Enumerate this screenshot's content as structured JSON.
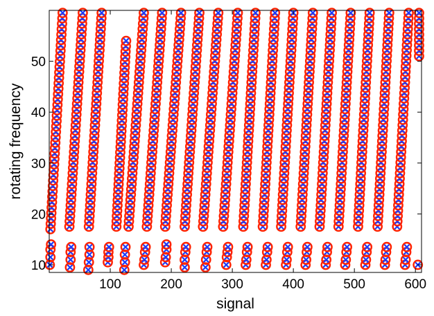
{
  "chart_data": {
    "type": "scatter",
    "title": "",
    "xlabel": "signal",
    "ylabel": "rotating frequency",
    "xlim": [
      0,
      610
    ],
    "ylim": [
      8.5,
      60
    ],
    "xticks": [
      100,
      200,
      300,
      400,
      500,
      600
    ],
    "yticks": [
      10,
      20,
      30,
      40,
      50
    ],
    "grid": false,
    "legend": "none",
    "series": [
      {
        "marker": "o",
        "color": "#ff2200",
        "role": "circles"
      },
      {
        "marker": "x",
        "color": "#1a3cff",
        "role": "crosses"
      }
    ],
    "columns": [
      {
        "top_x": 22,
        "top_y": 59.5,
        "bottom_x": 2,
        "bottom_y": 17,
        "low": [
          [
            1,
            10
          ],
          [
            2,
            11.5
          ],
          [
            2,
            13
          ],
          [
            3,
            14
          ]
        ]
      },
      {
        "top_x": 55,
        "top_y": 59.5,
        "bottom_x": 33,
        "bottom_y": 17.5,
        "low": [
          [
            34,
            9.5
          ],
          [
            35,
            11
          ],
          [
            35,
            12.5
          ],
          [
            36,
            13.5
          ]
        ]
      },
      {
        "top_x": 86,
        "top_y": 59.5,
        "bottom_x": 65,
        "bottom_y": 17.5,
        "low": [
          [
            64,
            9
          ],
          [
            65,
            10.5
          ],
          [
            66,
            12
          ],
          [
            66,
            13.5
          ]
        ]
      },
      {
        "top_x": 126,
        "top_y": 54,
        "bottom_x": 110,
        "bottom_y": 17.5,
        "low": [
          [
            96,
            10.5
          ],
          [
            97,
            11.5
          ],
          [
            97,
            12.5
          ],
          [
            98,
            13.5
          ]
        ]
      },
      {
        "top_x": 155,
        "top_y": 59.5,
        "bottom_x": 130,
        "bottom_y": 17.5,
        "low": [
          [
            123,
            9
          ],
          [
            124,
            10.5
          ],
          [
            124,
            12
          ],
          [
            125,
            13.5
          ]
        ]
      },
      {
        "top_x": 185,
        "top_y": 59.5,
        "bottom_x": 160,
        "bottom_y": 17.5,
        "low": [
          [
            155,
            10
          ],
          [
            156,
            11
          ],
          [
            157,
            12.5
          ],
          [
            158,
            13.5
          ]
        ]
      },
      {
        "top_x": 216,
        "top_y": 59.5,
        "bottom_x": 190,
        "bottom_y": 17.5,
        "low": [
          [
            190,
            10.5
          ],
          [
            191,
            11.5
          ],
          [
            192,
            13
          ],
          [
            192,
            14
          ]
        ]
      },
      {
        "top_x": 246,
        "top_y": 59.5,
        "bottom_x": 222,
        "bottom_y": 17.5,
        "low": [
          [
            222,
            9.5
          ],
          [
            222,
            11
          ],
          [
            223,
            12.5
          ],
          [
            224,
            13.5
          ]
        ]
      },
      {
        "top_x": 277,
        "top_y": 59.5,
        "bottom_x": 252,
        "bottom_y": 17.5,
        "low": [
          [
            256,
            9.5
          ],
          [
            257,
            11
          ],
          [
            258,
            12.5
          ],
          [
            259,
            13.5
          ]
        ]
      },
      {
        "top_x": 309,
        "top_y": 59.5,
        "bottom_x": 285,
        "bottom_y": 17.5,
        "low": [
          [
            290,
            10
          ],
          [
            291,
            11.5
          ],
          [
            292,
            12.5
          ],
          [
            293,
            13.5
          ]
        ]
      },
      {
        "top_x": 338,
        "top_y": 59.5,
        "bottom_x": 318,
        "bottom_y": 17.5,
        "low": [
          [
            322,
            10
          ],
          [
            323,
            11
          ],
          [
            324,
            12.5
          ],
          [
            325,
            13.5
          ]
        ]
      },
      {
        "top_x": 370,
        "top_y": 59.5,
        "bottom_x": 350,
        "bottom_y": 17.5,
        "low": [
          [
            355,
            10
          ],
          [
            356,
            11
          ],
          [
            357,
            12.5
          ],
          [
            358,
            13.5
          ]
        ]
      },
      {
        "top_x": 400,
        "top_y": 59.5,
        "bottom_x": 380,
        "bottom_y": 17.5,
        "low": [
          [
            388,
            10
          ],
          [
            389,
            11
          ],
          [
            390,
            12.5
          ],
          [
            391,
            13.5
          ]
        ]
      },
      {
        "top_x": 432,
        "top_y": 59.5,
        "bottom_x": 412,
        "bottom_y": 17.5,
        "low": [
          [
            420,
            10
          ],
          [
            421,
            11
          ],
          [
            422,
            12.5
          ],
          [
            423,
            13.5
          ]
        ]
      },
      {
        "top_x": 463,
        "top_y": 59.5,
        "bottom_x": 443,
        "bottom_y": 17.5,
        "low": [
          [
            453,
            10
          ],
          [
            454,
            11
          ],
          [
            455,
            12.5
          ],
          [
            456,
            13.5
          ]
        ]
      },
      {
        "top_x": 494,
        "top_y": 59.5,
        "bottom_x": 474,
        "bottom_y": 17.5,
        "low": [
          [
            485,
            10
          ],
          [
            486,
            11
          ],
          [
            487,
            12.5
          ],
          [
            488,
            13.5
          ]
        ]
      },
      {
        "top_x": 525,
        "top_y": 59.5,
        "bottom_x": 506,
        "bottom_y": 17.5,
        "low": [
          [
            518,
            10
          ],
          [
            519,
            11
          ],
          [
            520,
            12.5
          ],
          [
            521,
            13.5
          ]
        ]
      },
      {
        "top_x": 557,
        "top_y": 59.5,
        "bottom_x": 538,
        "bottom_y": 17.5,
        "low": [
          [
            550,
            10
          ],
          [
            551,
            11
          ],
          [
            552,
            12.5
          ],
          [
            553,
            13.5
          ]
        ]
      },
      {
        "top_x": 589,
        "top_y": 59.5,
        "bottom_x": 570,
        "bottom_y": 17.5,
        "low": [
          [
            583,
            10
          ],
          [
            584,
            11
          ],
          [
            585,
            12.5
          ],
          [
            586,
            13.5
          ]
        ]
      },
      {
        "top_x": 606,
        "top_y": 59.5,
        "bottom_x": 606,
        "bottom_y": 51,
        "low": [
          [
            604,
            10
          ]
        ]
      }
    ]
  }
}
